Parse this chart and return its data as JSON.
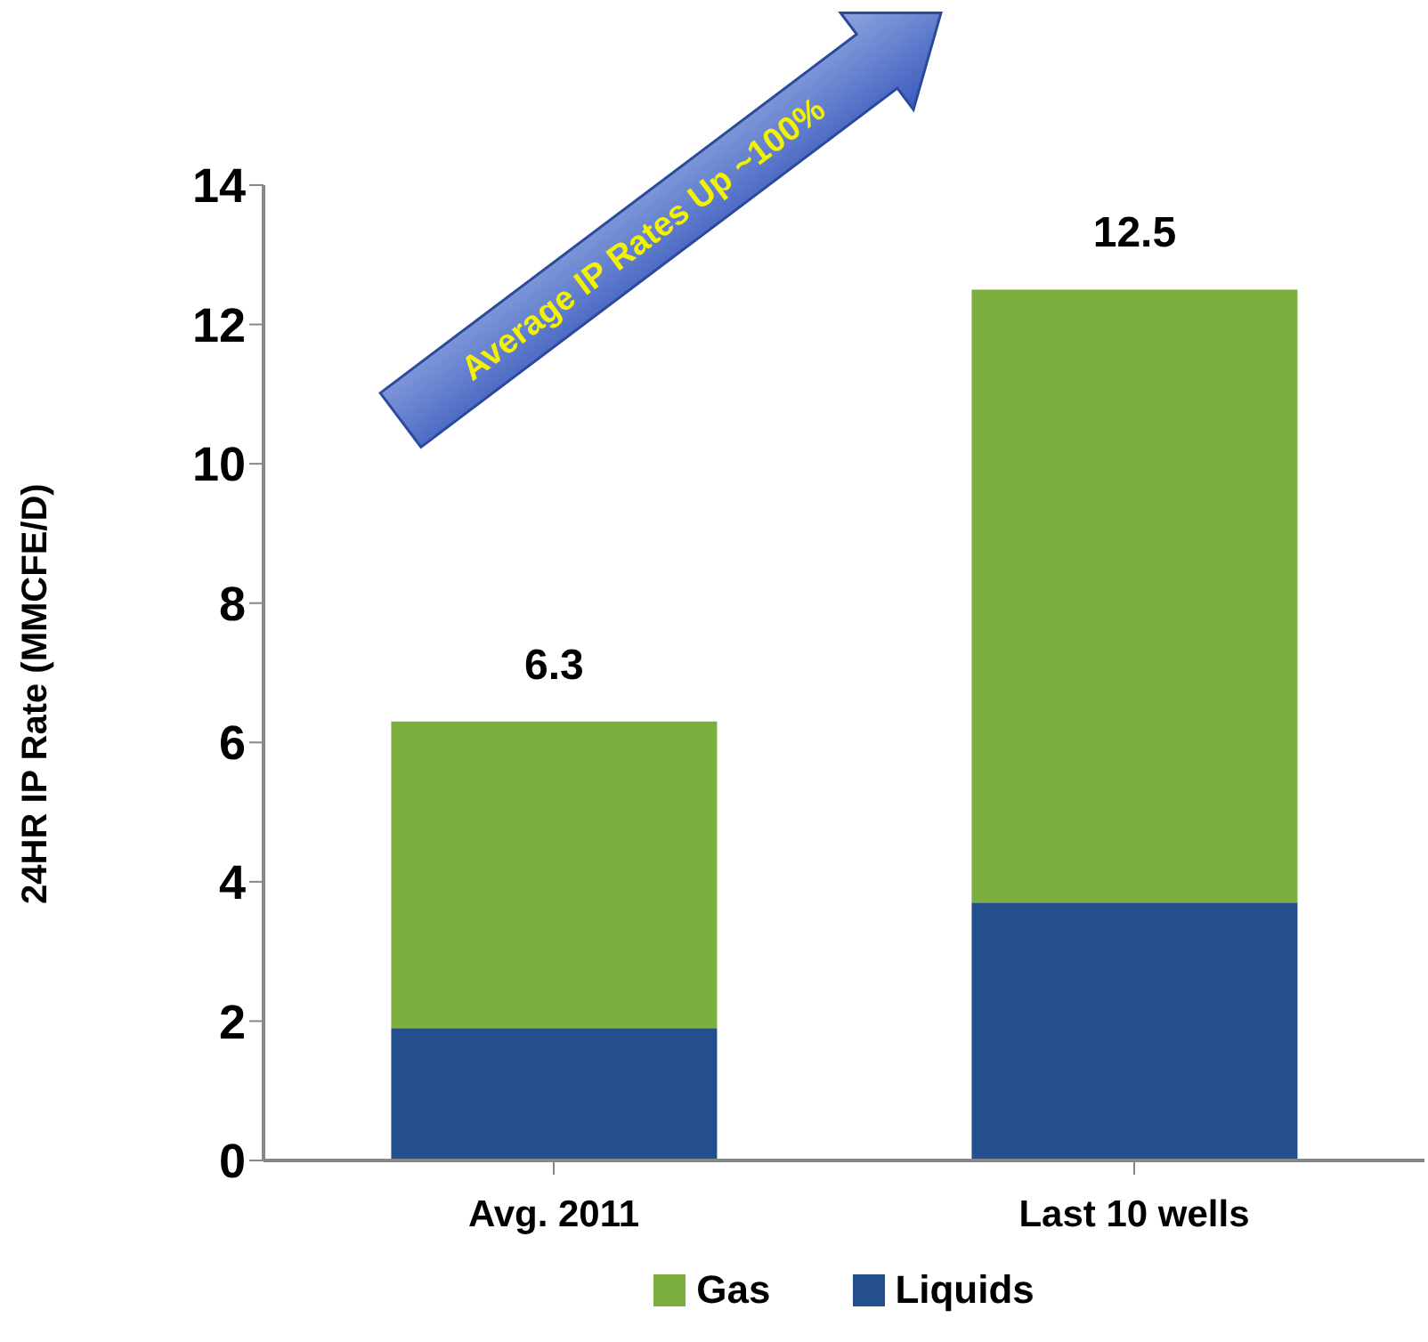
{
  "chart_data": {
    "type": "bar",
    "stacked": true,
    "ylabel": "24HR IP Rate (MMCFE/D)",
    "categories": [
      "Avg. 2011",
      "Last 10 wells"
    ],
    "series": [
      {
        "name": "Liquids",
        "color": "#234f8f",
        "values": [
          1.9,
          3.7
        ]
      },
      {
        "name": "Gas",
        "color": "#7cae3e",
        "values": [
          4.4,
          8.8
        ]
      }
    ],
    "totals": [
      "6.3",
      "12.5"
    ],
    "ylim": [
      0,
      14
    ],
    "yticks": [
      0,
      2,
      4,
      6,
      8,
      10,
      12,
      14
    ],
    "legend": "bottom",
    "grid": false,
    "annotations": [
      "Average IP Rates Up ~100%"
    ]
  }
}
